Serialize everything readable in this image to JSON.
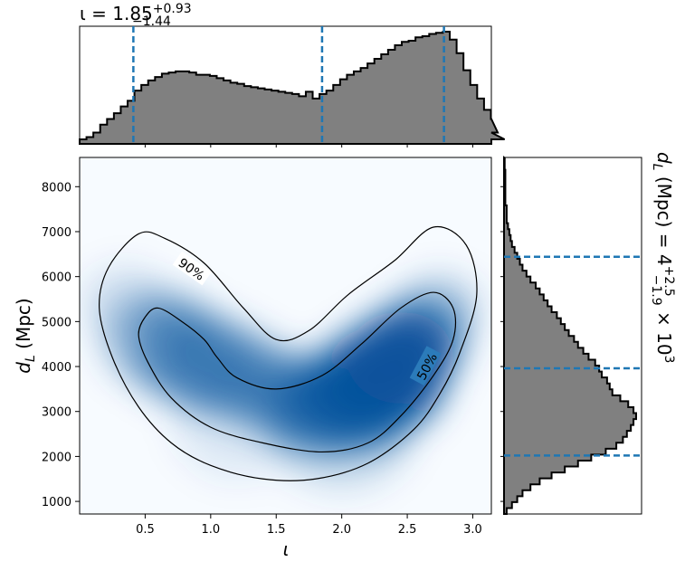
{
  "chart_data": {
    "type": "corner",
    "parameters": [
      {
        "symbol": "ι",
        "median": "1.85",
        "upper_err": "+0.93",
        "lower_err": "−1.44"
      },
      {
        "symbol": "d_L",
        "unit": "Mpc",
        "median": "4",
        "upper_err": "+2.5",
        "lower_err": "−1.9",
        "scale": "× 10",
        "scale_exp": "3"
      }
    ],
    "title_iota": {
      "prefix": "ι = 1.85",
      "sup": "+0.93",
      "sub": "−1.44"
    },
    "side_label": {
      "prefix": "d",
      "sub": "L",
      "mid": " (Mpc) = 4",
      "sup": "+2.5",
      "sub2": "−1.9",
      "suffix": " × 10",
      "exp": "3"
    },
    "xlabel": "ι",
    "ylabel": {
      "main": "d",
      "sub": "L",
      "unit": " (Mpc)"
    },
    "xlim": [
      0.0,
      3.1416
    ],
    "ylim": [
      720,
      8650
    ],
    "xticks": [
      0.5,
      1.0,
      1.5,
      2.0,
      2.5,
      3.0
    ],
    "xtick_labels": [
      "0.5",
      "1.0",
      "1.5",
      "2.0",
      "2.5",
      "3.0"
    ],
    "yticks": [
      1000,
      2000,
      3000,
      4000,
      5000,
      6000,
      7000,
      8000
    ],
    "ytick_labels": [
      "1000",
      "2000",
      "3000",
      "4000",
      "5000",
      "6000",
      "7000",
      "8000"
    ],
    "iota_hist": {
      "x_edges_start": 0.0,
      "bin_width": 0.0523,
      "values": [
        0.04,
        0.06,
        0.1,
        0.17,
        0.22,
        0.27,
        0.33,
        0.38,
        0.47,
        0.52,
        0.56,
        0.59,
        0.62,
        0.63,
        0.64,
        0.64,
        0.63,
        0.61,
        0.61,
        0.6,
        0.58,
        0.56,
        0.54,
        0.53,
        0.51,
        0.5,
        0.49,
        0.48,
        0.47,
        0.46,
        0.45,
        0.44,
        0.42,
        0.46,
        0.4,
        0.44,
        0.47,
        0.52,
        0.57,
        0.61,
        0.64,
        0.67,
        0.71,
        0.75,
        0.79,
        0.83,
        0.87,
        0.9,
        0.91,
        0.94,
        0.95,
        0.97,
        0.98,
        0.99,
        0.92,
        0.8,
        0.65,
        0.52,
        0.4,
        0.3,
        0.22,
        0.1,
        0.04
      ]
    },
    "iota_quantiles": [
      0.41,
      1.85,
      2.78
    ],
    "dl_hist": {
      "bin_width": 132,
      "bin_start": 720,
      "values": [
        0.02,
        0.06,
        0.1,
        0.14,
        0.2,
        0.27,
        0.36,
        0.46,
        0.56,
        0.66,
        0.77,
        0.85,
        0.9,
        0.93,
        0.96,
        0.98,
        1.0,
        0.98,
        0.94,
        0.88,
        0.82,
        0.8,
        0.78,
        0.74,
        0.72,
        0.69,
        0.64,
        0.6,
        0.56,
        0.53,
        0.49,
        0.46,
        0.43,
        0.4,
        0.36,
        0.33,
        0.3,
        0.27,
        0.24,
        0.2,
        0.17,
        0.14,
        0.12,
        0.1,
        0.08,
        0.06,
        0.05,
        0.04,
        0.03,
        0.02,
        0.02,
        0.02,
        0.01,
        0.01,
        0.01,
        0.01,
        0.01,
        0.01,
        0.005,
        0.005
      ]
    },
    "dl_quantiles": [
      2020,
      3960,
      6440
    ],
    "contours": [
      {
        "label": "90%",
        "level": 0.9
      },
      {
        "label": "50%",
        "level": 0.5
      }
    ],
    "colormap": "Blues",
    "hist_fill": "#808080",
    "quantile_color": "#1f77b4"
  }
}
